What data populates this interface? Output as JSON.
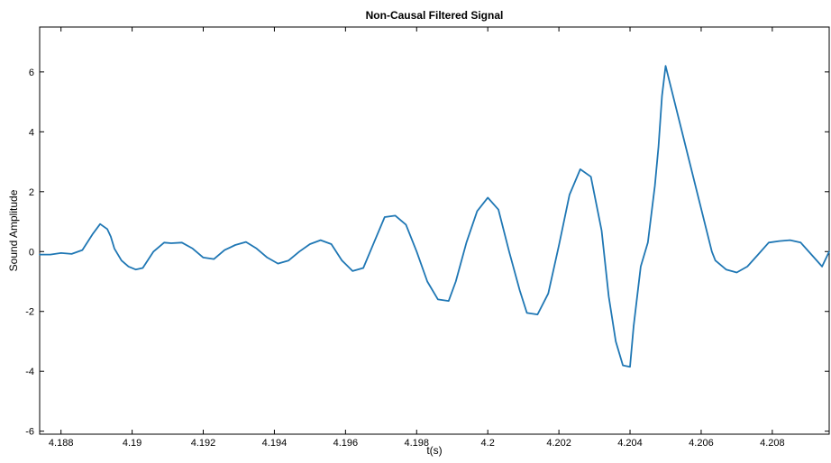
{
  "chart_data": {
    "type": "line",
    "title": "Non-Causal Filtered Signal",
    "xlabel": "t(s)",
    "ylabel": "Sound Amplitude",
    "xlim": [
      4.1874,
      4.2096
    ],
    "ylim": [
      -6.1,
      7.5
    ],
    "xticks": [
      4.188,
      4.19,
      4.192,
      4.194,
      4.196,
      4.198,
      4.2,
      4.202,
      4.204,
      4.206,
      4.208
    ],
    "xtick_labels": [
      "4.188",
      "4.19",
      "4.192",
      "4.194",
      "4.196",
      "4.198",
      "4.2",
      "4.202",
      "4.204",
      "4.206",
      "4.208"
    ],
    "yticks": [
      -6,
      -4,
      -2,
      0,
      2,
      4,
      6
    ],
    "ytick_labels": [
      "-6",
      "-4",
      "-2",
      "0",
      "2",
      "4",
      "6"
    ],
    "grid": false,
    "line_color": "#1f77b4",
    "series": [
      {
        "x": [
          4.1874,
          4.1877,
          4.188,
          4.1883,
          4.1886,
          4.1889,
          4.1891,
          4.1893,
          4.1894,
          4.1895,
          4.1897,
          4.1899,
          4.1901,
          4.1903,
          4.1906,
          4.1909,
          4.1911,
          4.1914,
          4.1917,
          4.192,
          4.1923,
          4.1926,
          4.1929,
          4.1932,
          4.1935,
          4.1938,
          4.1941,
          4.1944,
          4.1947,
          4.195,
          4.1953,
          4.1956,
          4.1959,
          4.1962,
          4.1965,
          4.1968,
          4.1971,
          4.1974,
          4.1977,
          4.198,
          4.1983,
          4.1986,
          4.1989,
          4.1991,
          4.1994,
          4.1997,
          4.2,
          4.2003,
          4.2006,
          4.2009,
          4.2011,
          4.2014,
          4.2017,
          4.202,
          4.2023,
          4.2026,
          4.2029,
          4.2032,
          4.2034,
          4.2036,
          4.2038,
          4.204,
          4.2041,
          4.2043,
          4.2045,
          4.2047,
          4.2048,
          4.2049,
          4.205,
          4.2063,
          4.2064,
          4.2067,
          4.207,
          4.2073,
          4.2076,
          4.2079,
          4.2082,
          4.2085,
          4.2088,
          4.2091,
          4.2094,
          4.2096
        ],
        "y": [
          -0.1,
          -0.1,
          -0.05,
          -0.08,
          0.05,
          0.6,
          0.92,
          0.75,
          0.5,
          0.1,
          -0.3,
          -0.5,
          -0.6,
          -0.55,
          0.0,
          0.3,
          0.28,
          0.3,
          0.1,
          -0.2,
          -0.25,
          0.05,
          0.22,
          0.32,
          0.1,
          -0.2,
          -0.4,
          -0.3,
          0.0,
          0.25,
          0.38,
          0.25,
          -0.3,
          -0.65,
          -0.55,
          0.3,
          1.15,
          1.2,
          0.9,
          0.0,
          -1.0,
          -1.6,
          -1.65,
          -1.0,
          0.3,
          1.35,
          1.8,
          1.4,
          0.0,
          -1.3,
          -2.05,
          -2.1,
          -1.4,
          0.2,
          1.9,
          2.75,
          2.5,
          0.7,
          -1.5,
          -3.0,
          -3.8,
          -3.85,
          -2.5,
          -0.5,
          0.3,
          2.2,
          3.5,
          5.2,
          6.2,
          0.0,
          -0.3,
          -0.6,
          -0.7,
          -0.5,
          -0.1,
          0.3,
          0.35,
          0.38,
          0.3,
          -0.1,
          -0.5,
          0.0
        ]
      }
    ]
  }
}
